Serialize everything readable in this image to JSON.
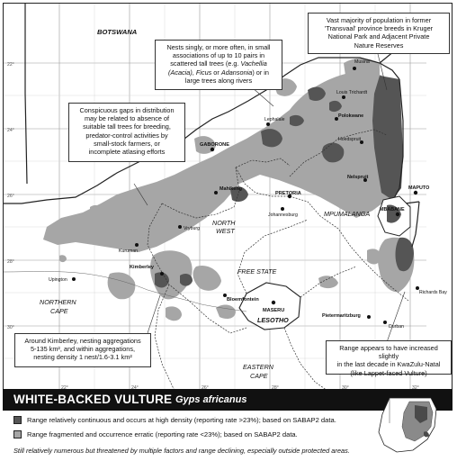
{
  "regions": {
    "botswana": "BOTSWANA",
    "north_west": [
      "NORTH",
      "WEST"
    ],
    "free_state": "FREE STATE",
    "mpumalanga": "MPUMALANGA",
    "northern_cape": [
      "NORTHERN",
      "CAPE"
    ],
    "eastern_cape": [
      "EASTERN",
      "CAPE"
    ],
    "lesotho": "LESOTHO"
  },
  "places": {
    "musina": "Musina",
    "louis_trichardt": "Louis Trichardt",
    "polokwane": "Polokwane",
    "lephalale": "Lephalale",
    "hoedspruit": "Hoedspruit",
    "nelspruit": "Nelspruit",
    "maputo": "MAPUTO",
    "mbabane": "MBABANE",
    "gaborone": "GABORONE",
    "mahikeng": "Mahikeng",
    "pretoria": "PRETORIA",
    "johannesburg": "Johannesburg",
    "vryburg": "Vryburg",
    "kuruman": "Kuruman",
    "upington": "Upington",
    "kimberley": "Kimberley",
    "bloemfontein": "Bloemfontein",
    "maseru": "MASERU",
    "pietermaritzburg": "Pietermaritzburg",
    "durban": "Durban",
    "richards_bay": "Richards Bay"
  },
  "graticule": {
    "lat": [
      "22°",
      "24°",
      "26°",
      "28°",
      "30°"
    ],
    "lon": [
      "22°",
      "24°",
      "26°",
      "28°",
      "30°",
      "32°"
    ]
  },
  "annotations": {
    "kruger": [
      "Vast majority of population in former",
      "'Transvaal' province breeds in Kruger",
      "National Park and Adjacent Private",
      "Nature Reserves"
    ],
    "nests": {
      "line1": "Nests singly, or more often, in small",
      "line2": "associations of up to 10 pairs in",
      "line3a": "scattered tall trees (e.g. ",
      "line3b": "Vachellia",
      "line4a": "(Acacia)",
      "line4b": ", ",
      "line4c": "Ficus",
      "line4d": " or ",
      "line4e": "Adansonia",
      "line4f": ") or in",
      "line5": "large trees along rivers"
    },
    "gaps": [
      "Conspicuous gaps in distribution",
      "may be related to absence of",
      "suitable tall trees for breeding,",
      "predator-control activities by",
      "small-stock farmers, or",
      "incomplete atlasing efforts"
    ],
    "kimberley": [
      "Around Kimberley, nesting aggregations",
      "5-135 km², and within aggregations,",
      "nesting density 1 nest/1.6-3.1 km²"
    ],
    "kzn": [
      "Range appears to have increased slightly",
      "in the last decade in KwaZulu-Natal",
      "(like Lappet-faced Vulture)"
    ]
  },
  "legend": {
    "title": "WHITE-BACKED VULTURE",
    "scientific": "Gyps africanus",
    "dark": "Range relatively continuous and occurs at high density (reporting rate >23%); based on SABAP2 data.",
    "light": "Range fragmented and occurrence erratic (reporting rate <23%); based on SABAP2 data.",
    "footnote": "Still relatively numerous but threatened by multiple factors and range declining, especially outside protected areas.",
    "dark_color": "#555555",
    "light_color": "#a6a6a6"
  }
}
